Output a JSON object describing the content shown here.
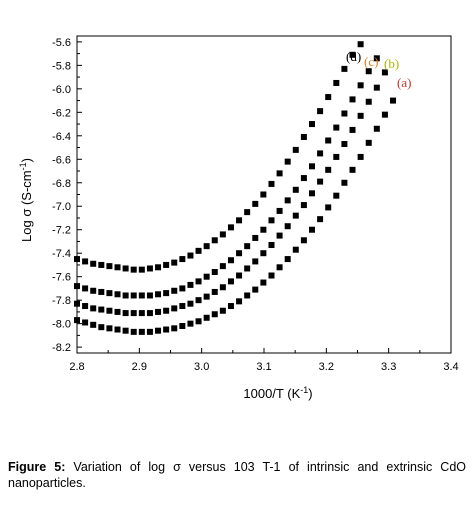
{
  "chart_data": {
    "type": "scatter",
    "xlabel_main": "1000/T (K",
    "xlabel_sup": "-1",
    "xlabel_end": ")",
    "ylabel_main": "Log σ (S-cm",
    "ylabel_sup": "-1",
    "ylabel_end": ")",
    "xlim": [
      2.8,
      3.4
    ],
    "ylim": [
      -8.25,
      -5.55
    ],
    "xticks": [
      "2.8",
      "2.9",
      "3.0",
      "3.1",
      "3.2",
      "3.3",
      "3.4"
    ],
    "yticks": [
      "-5.6",
      "-5.8",
      "-6.0",
      "-6.2",
      "-6.4",
      "-6.6",
      "-6.8",
      "-7.0",
      "-7.2",
      "-7.4",
      "-7.6",
      "-7.8",
      "-8.0",
      "-8.2"
    ],
    "marker": "square",
    "marker_color": "#000000",
    "series": [
      {
        "name": "(a)",
        "label_color": "#c0392b",
        "x": [
          2.8,
          2.813,
          2.826,
          2.839,
          2.852,
          2.865,
          2.878,
          2.891,
          2.904,
          2.917,
          2.93,
          2.943,
          2.956,
          2.969,
          2.982,
          2.995,
          3.008,
          3.021,
          3.034,
          3.047,
          3.06,
          3.073,
          3.086,
          3.099,
          3.112,
          3.125,
          3.138,
          3.151,
          3.164,
          3.177,
          3.19,
          3.203,
          3.216,
          3.229,
          3.242,
          3.255,
          3.268,
          3.281,
          3.294,
          3.307
        ],
        "y": [
          -7.97,
          -7.99,
          -8.01,
          -8.03,
          -8.04,
          -8.05,
          -8.06,
          -8.07,
          -8.07,
          -8.07,
          -8.06,
          -8.05,
          -8.04,
          -8.02,
          -8.0,
          -7.98,
          -7.95,
          -7.92,
          -7.89,
          -7.85,
          -7.81,
          -7.76,
          -7.71,
          -7.65,
          -7.59,
          -7.52,
          -7.45,
          -7.37,
          -7.29,
          -7.2,
          -7.11,
          -7.01,
          -6.91,
          -6.8,
          -6.69,
          -6.58,
          -6.46,
          -6.34,
          -6.22,
          -6.1
        ]
      },
      {
        "name": "(b)",
        "label_color": "#a8b400",
        "x": [
          2.8,
          2.813,
          2.826,
          2.839,
          2.852,
          2.865,
          2.878,
          2.891,
          2.904,
          2.917,
          2.93,
          2.943,
          2.956,
          2.969,
          2.982,
          2.995,
          3.008,
          3.021,
          3.034,
          3.047,
          3.06,
          3.073,
          3.086,
          3.099,
          3.112,
          3.125,
          3.138,
          3.151,
          3.164,
          3.177,
          3.19,
          3.203,
          3.216,
          3.229,
          3.242,
          3.255,
          3.268,
          3.281,
          3.294
        ],
        "y": [
          -7.83,
          -7.85,
          -7.87,
          -7.88,
          -7.89,
          -7.9,
          -7.91,
          -7.91,
          -7.91,
          -7.91,
          -7.9,
          -7.89,
          -7.87,
          -7.85,
          -7.83,
          -7.8,
          -7.77,
          -7.73,
          -7.69,
          -7.64,
          -7.59,
          -7.53,
          -7.47,
          -7.4,
          -7.33,
          -7.25,
          -7.17,
          -7.08,
          -6.99,
          -6.89,
          -6.79,
          -6.69,
          -6.58,
          -6.47,
          -6.35,
          -6.23,
          -6.11,
          -5.99,
          -5.86
        ]
      },
      {
        "name": "(c)",
        "label_color": "#e67e22",
        "x": [
          2.8,
          2.813,
          2.826,
          2.839,
          2.852,
          2.865,
          2.878,
          2.891,
          2.904,
          2.917,
          2.93,
          2.943,
          2.956,
          2.969,
          2.982,
          2.995,
          3.008,
          3.021,
          3.034,
          3.047,
          3.06,
          3.073,
          3.086,
          3.099,
          3.112,
          3.125,
          3.138,
          3.151,
          3.164,
          3.177,
          3.19,
          3.203,
          3.216,
          3.229,
          3.242,
          3.255,
          3.268,
          3.281
        ],
        "y": [
          -7.68,
          -7.7,
          -7.72,
          -7.73,
          -7.74,
          -7.75,
          -7.76,
          -7.76,
          -7.76,
          -7.76,
          -7.75,
          -7.74,
          -7.72,
          -7.7,
          -7.67,
          -7.64,
          -7.6,
          -7.56,
          -7.51,
          -7.46,
          -7.4,
          -7.34,
          -7.27,
          -7.2,
          -7.12,
          -7.04,
          -6.95,
          -6.86,
          -6.76,
          -6.66,
          -6.55,
          -6.44,
          -6.33,
          -6.21,
          -6.09,
          -5.97,
          -5.85,
          -5.74
        ]
      },
      {
        "name": "(d)",
        "label_color": "#000000",
        "x": [
          2.8,
          2.813,
          2.826,
          2.839,
          2.852,
          2.865,
          2.878,
          2.891,
          2.904,
          2.917,
          2.93,
          2.943,
          2.956,
          2.969,
          2.982,
          2.995,
          3.008,
          3.021,
          3.034,
          3.047,
          3.06,
          3.073,
          3.086,
          3.099,
          3.112,
          3.125,
          3.138,
          3.151,
          3.164,
          3.177,
          3.19,
          3.203,
          3.216,
          3.229,
          3.242,
          3.255
        ],
        "y": [
          -7.45,
          -7.47,
          -7.49,
          -7.5,
          -7.51,
          -7.52,
          -7.53,
          -7.54,
          -7.54,
          -7.53,
          -7.52,
          -7.5,
          -7.48,
          -7.45,
          -7.42,
          -7.38,
          -7.34,
          -7.29,
          -7.24,
          -7.18,
          -7.12,
          -7.05,
          -6.98,
          -6.9,
          -6.81,
          -6.72,
          -6.62,
          -6.52,
          -6.41,
          -6.3,
          -6.19,
          -6.07,
          -5.95,
          -5.83,
          -5.71,
          -5.62
        ]
      }
    ]
  },
  "caption": {
    "label": "Figure 5:",
    "text": " Variation of log σ versus 103 T-1 of intrinsic and extrinsic CdO nanoparticles."
  }
}
